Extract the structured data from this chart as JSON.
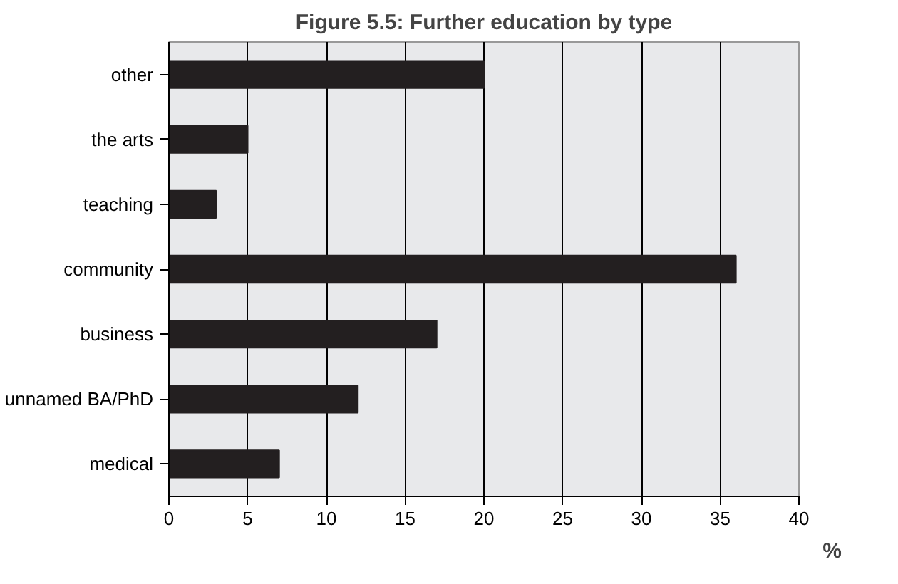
{
  "chart_data": {
    "type": "bar",
    "orientation": "horizontal",
    "title": "Figure 5.5: Further education by type",
    "xlabel": "%",
    "categories": [
      "other",
      "the arts",
      "teaching",
      "community",
      "business",
      "unnamed BA/PhD",
      "medical"
    ],
    "values": [
      20,
      5,
      3,
      36,
      17,
      12,
      7
    ],
    "color": "#231f20",
    "xlim": [
      0,
      40
    ],
    "xticks": [
      0,
      5,
      10,
      15,
      20,
      25,
      30,
      35,
      40
    ],
    "grid": "x"
  }
}
